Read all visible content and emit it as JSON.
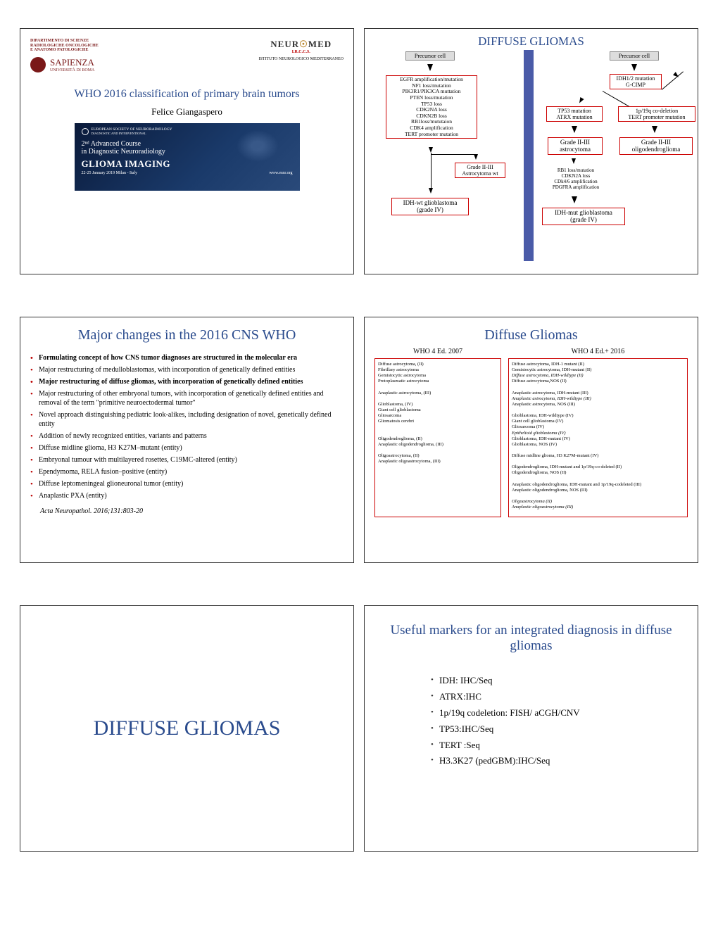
{
  "s1": {
    "dept1": "DIPARTIMENTO DI SCIENZE",
    "dept2": "RADIOLOGICHE ONCOLOGICHE",
    "dept3": "E ANATOMO PATOLOGICHE",
    "sapienza": "SAPIENZA",
    "sapienza2": "UNIVERSITÀ DI ROMA",
    "neuromed": "NEUROMED",
    "irccs": "I.R.C.C.S.",
    "istituto": "ISTITUTO NEUROLOGICO MEDITERRANEO",
    "title": "WHO 2016 classification of primary brain tumors",
    "author": "Felice Giangaspero",
    "banner1": "EUROPEAN SOCIETY OF NEURORADIOLOGY",
    "banner1b": "DIAGNOSTIC AND INTERVENTIONAL",
    "banner2a": "2ⁿᵈ Advanced Course",
    "banner2b": "in Diagnostic Neuroradiology",
    "banner3": "GLIOMA IMAGING",
    "banner4": "22-25 January 2019    Milan - Italy",
    "banner5": "www.esnr.org"
  },
  "s2": {
    "title": "DIFFUSE GLIOMAS",
    "precursor": "Precursor cell",
    "left_mol": "EGFR amplification/mutation\nNF1 loss/mutation\nPIK3R1/PIK3CA muttation\nPTEN loss/mutation\nTP53 loss\nCDK2NA loss\nCDKN2B loss\nRB1loss/mututaion\nCDK4 amplification\nTERT promoter mutation",
    "left_astro": "Grade II-III\nAstrocytoma wt",
    "left_gbm": "IDH-wt glioblastoma\n(grade IV)",
    "idh": "IDH1/2 mutation\nG-CIMP",
    "tp53": "TP53 mutation\nATRX mutation",
    "codel": "1p/19q co-deletion\nTERT promoter mutation",
    "astro23": "Grade II-III\nastrocytoma",
    "oligo23": "Grade II-III\noligodendroglioma",
    "rb1": "RB1 loss/mutation\nCDKN2A loss\nCDk4/6 amplification\nPDGFRA amplification",
    "idhmut_gbm": "IDH-mut glioblastoma\n(grade IV)"
  },
  "s3": {
    "title": "Major changes in the 2016 CNS WHO",
    "items": [
      "Formulating concept of how CNS tumor diagnoses are structured in the molecular era",
      "Major restructuring of medulloblastomas, with incorporation of genetically defined entities",
      "Major restructuring of diffuse gliomas, with incorporation of genetically defined entities",
      "Major restructuring of other embryonal tumors, with incorporation of genetically defined entities and removal of the term \"primitive neuroectodermal tumor\"",
      "Novel approach distinguishing pediatric look-alikes, including designation of novel,  genetically defined entity",
      "Addition of newly recognized entities, variants and patterns",
      "Diffuse midline glioma, H3 K27M–mutant (entity)",
      "Embryonal tumour with multilayered rosettes, C19MC-altered (entity)",
      "Ependymoma, RELA fusion–positive (entity)",
      "Diffuse leptomeningeal glioneuronal tumor (entity)",
      "Anaplastic PXA (entity)"
    ],
    "bold_idx": [
      0,
      2
    ],
    "ref": "Acta Neuropathol. 2016;131:803-20"
  },
  "s4": {
    "title": "Diffuse Gliomas",
    "col1_h": "WHO 4 Ed. 2007",
    "col2_h": "WHO 4 Ed.+ 2016",
    "col1": "Diffuse astrocytoma, (II)\n   Fibrillary astrocytoma\n   Gemistocytic astrocytoma\n   Protoplasmatic astrocytoma\n\nAnaplastic astrocytoma, (III)\n\nGlioblastoma, (IV)\nGiant cell glioblastoma\nGliosarcoma\nGliomatosis cerebri\n\n\nOligodendroglioma, (II)\nAnaplastic oligodendroglioma, (III)\n\nOligoastrocytoma, (II)\nAnaplastic oligoastrocytoma, (III)",
    "col2": "Diffuse astrocytoma, IDH-1 mutant (II)\n   Gemistocytic astrocytoma, IDH-mutant (II)\n<i>Diffuse astrocytoma, IDH-wildtype (II)</i>\nDiffuse astrocytoma,NOS (II)\n\nAnaplastic astrocytoma, IDH-mutant (III)\n<i>Anaplastic astrocytoma, IDH-wildtype (III)</i>\nAnaplastic astrocytoma, NOS (III)\n\nGlioblastoma, IDH-wildtype (IV)\nGiant cell glioblastoma (IV)\nGliosarcoma (IV)\n<i>Epithelioid glioblastoma (IV)</i>\nGlioblastoma, IDH-mutant (IV)\nGlioblastoma, NOS (IV)\n\nDiffuse midline glioma, H3 K27M-mutant (IV)\n\nOligodendroglioma, IDH-mutant and 1p/19q-co-deleted (II)\nOligodendroglioma, NOS (II)\n\nAnaplastic oligodendroglioma, IDH-mutant and 1p/19q-codeleted (III)\nAnaplastic oligodendroglioma, NOS (III)\n\n<i>Oligoastrocytoma (II)</i>\n<i>Anaplastic oligoastrocytoma (III)</i>"
  },
  "s5": {
    "title": "DIFFUSE GLIOMAS"
  },
  "s6": {
    "title": "Useful markers for an integrated diagnosis in diffuse gliomas",
    "items": [
      "IDH: IHC/Seq",
      "ATRX:IHC",
      "1p/19q codeletion: FISH/ aCGH/CNV",
      "TP53:IHC/Seq",
      "TERT :Seq",
      "H3.3K27 (pedGBM):IHC/Seq"
    ]
  }
}
